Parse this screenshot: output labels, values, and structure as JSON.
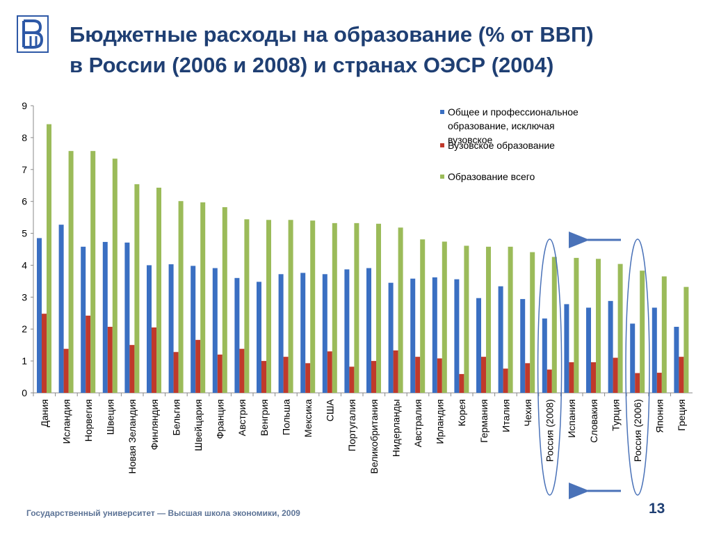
{
  "slide": {
    "title_line1": "Бюджетные расходы на образование (% от ВВП)",
    "title_line2": "в России (2006 и 2008) и странах ОЭСР (2004)",
    "footer": "Государственный университет — Высшая школа экономики, 2009",
    "page_number": "13",
    "logo": "hse-logo-icon"
  },
  "chart_data": {
    "type": "bar",
    "title": "",
    "xlabel": "",
    "ylabel": "",
    "ylim": [
      0,
      9
    ],
    "yticks": [
      0,
      1,
      2,
      3,
      4,
      5,
      6,
      7,
      8,
      9
    ],
    "grid": false,
    "legend_position": "top-right",
    "categories": [
      "Дания",
      "Исландия",
      "Норвегия",
      "Швеция",
      "Новая Зеландия",
      "Финляндия",
      "Бельгия",
      "Швейцария",
      "Франция",
      "Австрия",
      "Венгрия",
      "Польша",
      "Мексика",
      "США",
      "Португалия",
      "Великобритания",
      "Нидерланды",
      "Австралия",
      "Ирландия",
      "Корея",
      "Германия",
      "Италия",
      "Чехия",
      "Россия (2008)",
      "Испания",
      "Словакия",
      "Турция",
      "Россия (2006)",
      "Япония",
      "Греция"
    ],
    "series": [
      {
        "name": "Общее и профессиональное образование, исключая вузовское",
        "color": "#3a6fc2",
        "values": [
          4.85,
          5.27,
          4.58,
          4.73,
          4.71,
          4.0,
          4.03,
          3.98,
          3.91,
          3.6,
          3.48,
          3.72,
          3.76,
          3.72,
          3.87,
          3.91,
          3.45,
          3.58,
          3.62,
          3.56,
          2.97,
          3.34,
          2.94,
          2.33,
          2.78,
          2.67,
          2.88,
          2.17,
          2.67,
          2.07
        ]
      },
      {
        "name": "Вузовское образование",
        "color": "#c0392b",
        "values": [
          2.48,
          1.38,
          2.42,
          2.07,
          1.5,
          2.05,
          1.28,
          1.66,
          1.2,
          1.38,
          1.0,
          1.13,
          0.93,
          1.3,
          0.82,
          1.0,
          1.33,
          1.13,
          1.08,
          0.59,
          1.13,
          0.76,
          0.93,
          0.73,
          0.96,
          0.96,
          1.1,
          0.62,
          0.63,
          1.13
        ]
      },
      {
        "name": "Образование всего",
        "color": "#9bbb59",
        "values": [
          8.42,
          7.58,
          7.58,
          7.34,
          6.54,
          6.43,
          6.01,
          5.97,
          5.82,
          5.44,
          5.42,
          5.42,
          5.4,
          5.32,
          5.32,
          5.3,
          5.18,
          4.81,
          4.74,
          4.61,
          4.58,
          4.58,
          4.41,
          4.26,
          4.23,
          4.2,
          4.04,
          3.83,
          3.65,
          3.32
        ]
      }
    ],
    "highlighted_categories": [
      "Россия (2008)",
      "Россия (2006)"
    ]
  }
}
